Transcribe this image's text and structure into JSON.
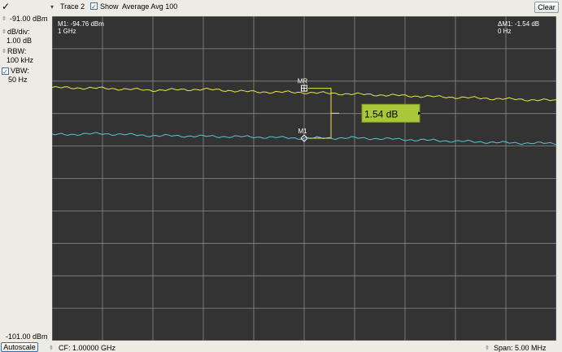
{
  "toolbar": {
    "check_mark": "✓",
    "trace_label": "Trace 2",
    "show_check": "✓",
    "show_label": "Show",
    "average_label": "Average Avg 100",
    "clear_label": "Clear"
  },
  "sidebar": {
    "ref_level_top": "-91.00 dBm",
    "db_div_label": "dB/div:",
    "db_div_value": "1.00 dB",
    "rbw_label": "RBW:",
    "rbw_value": "100 kHz",
    "vbw_check": "✓",
    "vbw_label": "VBW:",
    "vbw_value": "50 Hz",
    "ref_level_bottom": "-101.00 dBm",
    "autoscale_label": "Autoscale"
  },
  "markers": {
    "m1_line1": "M1: -94.76 dBm",
    "m1_line2": "1 GHz",
    "delta_line1": "ΔM1: -1.54 dB",
    "delta_line2": "0 Hz",
    "mr_label": "MR",
    "m1_label": "M1",
    "delta_readout": "1.54 dB"
  },
  "footer": {
    "center_freq": "CF: 1.00000 GHz",
    "span": "Span: 5.00 MHz"
  },
  "chart_data": {
    "type": "line",
    "x_divisions": 10,
    "y_divisions": 10,
    "ylim": [
      -101.0,
      -91.0
    ],
    "y_unit": "dBm",
    "center_frequency": "1.00000 GHz",
    "span": "5.00 MHz",
    "grid": true,
    "series": [
      {
        "color": "#e8e84a",
        "x_fraction": [
          0,
          0.1,
          0.2,
          0.3,
          0.4,
          0.5,
          0.6,
          0.7,
          0.8,
          0.9,
          1.0
        ],
        "values": [
          -93.2,
          -93.22,
          -93.28,
          -93.25,
          -93.33,
          -93.35,
          -93.4,
          -93.45,
          -93.5,
          -93.55,
          -93.6
        ]
      },
      {
        "color": "#58c6d6",
        "x_fraction": [
          0,
          0.1,
          0.2,
          0.3,
          0.4,
          0.5,
          0.6,
          0.7,
          0.8,
          0.9,
          1.0
        ],
        "values": [
          -94.65,
          -94.62,
          -94.68,
          -94.7,
          -94.72,
          -94.76,
          -94.75,
          -94.8,
          -94.85,
          -94.9,
          -94.92
        ]
      }
    ],
    "marker_reference": {
      "label": "MR",
      "x_fraction": 0.5,
      "value": -93.22
    },
    "marker_1": {
      "label": "M1",
      "x_fraction": 0.5,
      "value": -94.76
    },
    "delta_db": 1.54,
    "readout_color": "#a8c83a"
  }
}
